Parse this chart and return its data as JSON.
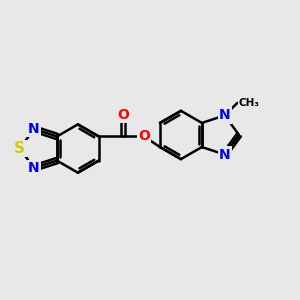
{
  "background_color": "#e8e8e8",
  "bond_color": "#000000",
  "bond_width": 1.8,
  "atom_colors": {
    "N": "#0000ff",
    "O": "#ff0000",
    "S": "#cccc00",
    "C": "#000000"
  },
  "font_size_atom": 10,
  "canvas_xlim": [
    0,
    10
  ],
  "canvas_ylim": [
    0,
    10
  ]
}
